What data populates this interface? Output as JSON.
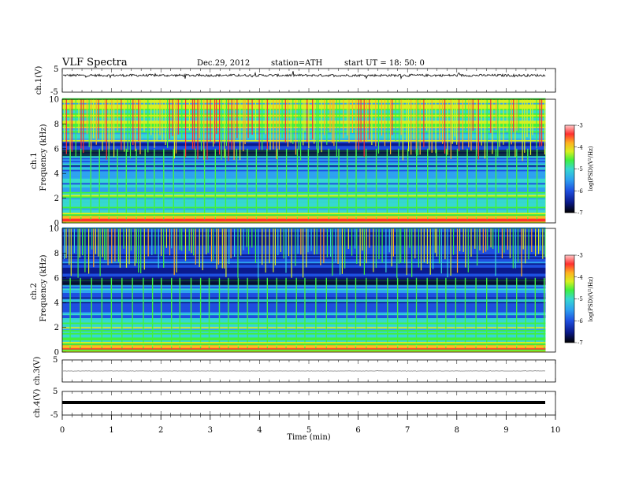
{
  "header": {
    "title": "VLF  Spectra",
    "date": "Dec.29, 2012",
    "station": "station=ATH",
    "start": "start  UT  =    18: 50: 0"
  },
  "chart_data": [
    {
      "type": "line",
      "panel": "ch1-waveform",
      "ylabel": "ch.1(V)",
      "ylim": [
        -5,
        5
      ],
      "yticks": [
        "5",
        "-5"
      ],
      "baseline": 2.1,
      "noise_amplitude": 0.5
    },
    {
      "type": "heatmap",
      "panel": "ch1-spectrogram",
      "ylabel_channel": "ch.1",
      "ylabel": "Frequency  (kHz)",
      "ylim": [
        0,
        10
      ],
      "yticks": [
        "0",
        "2",
        "4",
        "6",
        "8",
        "10"
      ],
      "xlim": [
        0,
        9.8
      ],
      "colorbar": {
        "label": "log(PSD)(V²/Hz)",
        "range": [
          -7,
          -3
        ],
        "ticks": [
          "-3",
          "-4",
          "-5",
          "-6",
          "-7"
        ]
      }
    },
    {
      "type": "heatmap",
      "panel": "ch2-spectrogram",
      "ylabel_channel": "ch.2",
      "ylabel": "Frequency  (kHz)",
      "ylim": [
        0,
        10
      ],
      "yticks": [
        "0",
        "2",
        "4",
        "6",
        "8",
        "10"
      ],
      "xlim": [
        0,
        9.8
      ],
      "colorbar": {
        "label": "log(PSD)(V²/Hz)",
        "range": [
          -7,
          -3
        ],
        "ticks": [
          "-3",
          "-4",
          "-5",
          "-6",
          "-7"
        ]
      }
    },
    {
      "type": "line",
      "panel": "ch3-waveform",
      "ylabel": "ch.3(V)",
      "ylim": [
        -5,
        5
      ],
      "yticks": [
        "5"
      ],
      "baseline": 0,
      "noise_amplitude": 0.05
    },
    {
      "type": "line",
      "panel": "ch4-waveform",
      "ylabel": "ch.4(V)",
      "ylim": [
        -5,
        5
      ],
      "yticks": [
        "5",
        "-5"
      ],
      "baseline": 0,
      "noise_amplitude": 0.15
    }
  ],
  "x_axis": {
    "label": "Time  (min)",
    "range": [
      0,
      10
    ],
    "ticks": [
      "0",
      "1",
      "2",
      "3",
      "4",
      "5",
      "6",
      "7",
      "8",
      "9",
      "10"
    ]
  },
  "colors": {
    "colormap": [
      "#000000",
      "#0b1a8c",
      "#1f4fe0",
      "#2ea3f0",
      "#36d8d0",
      "#40f040",
      "#d8f020",
      "#ffb020",
      "#ff3030",
      "#ffc8c8"
    ]
  }
}
